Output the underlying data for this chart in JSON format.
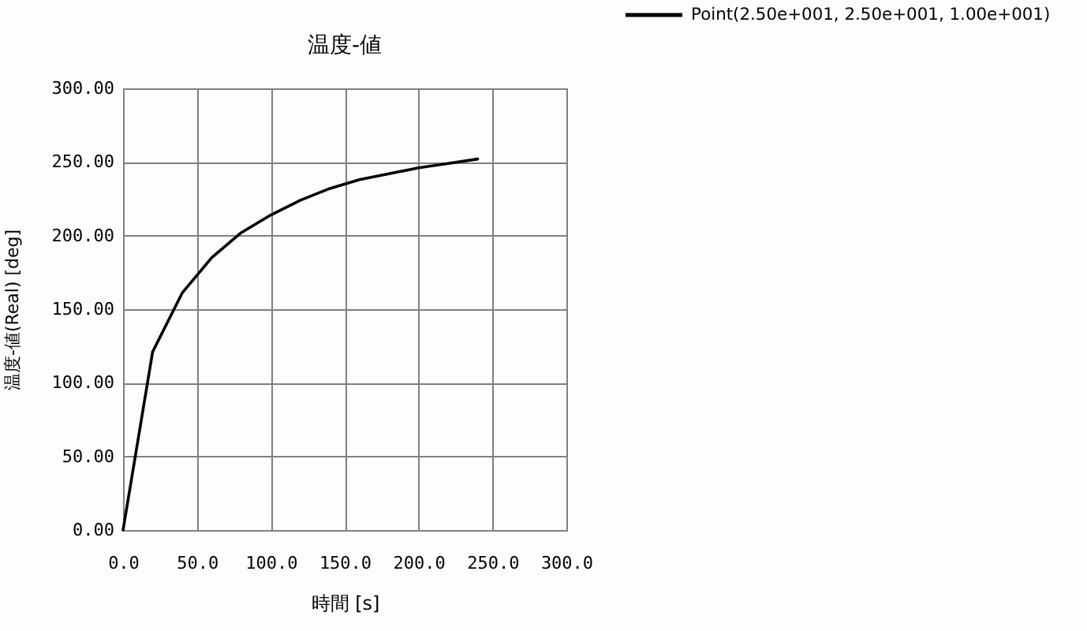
{
  "chart_data": {
    "type": "line",
    "title": "温度-値",
    "xlabel": "時間 [s]",
    "ylabel": "温度-値(Real) [deg]",
    "x": [
      0,
      20,
      40,
      60,
      80,
      100,
      120,
      140,
      160,
      180,
      200,
      220,
      240
    ],
    "series": [
      {
        "name": "Point(2.50e+001, 2.50e+001, 1.00e+001)",
        "color": "#000000",
        "values": [
          0,
          121,
          161,
          185,
          202,
          214,
          224,
          232,
          238,
          242,
          246,
          249,
          252
        ]
      }
    ],
    "xlim": [
      0,
      300
    ],
    "ylim": [
      0,
      300
    ],
    "xticks": [
      {
        "value": 0,
        "label": "0.0"
      },
      {
        "value": 50,
        "label": "50.0"
      },
      {
        "value": 100,
        "label": "100.0"
      },
      {
        "value": 150,
        "label": "150.0"
      },
      {
        "value": 200,
        "label": "200.0"
      },
      {
        "value": 250,
        "label": "250.0"
      },
      {
        "value": 300,
        "label": "300.0"
      }
    ],
    "yticks": [
      {
        "value": 0,
        "label": "0.00"
      },
      {
        "value": 50,
        "label": "50.00"
      },
      {
        "value": 100,
        "label": "100.00"
      },
      {
        "value": 150,
        "label": "150.00"
      },
      {
        "value": 200,
        "label": "200.00"
      },
      {
        "value": 250,
        "label": "250.00"
      },
      {
        "value": 300,
        "label": "300.00"
      }
    ],
    "grid": true,
    "legend": "top right",
    "line_style": "solid"
  }
}
